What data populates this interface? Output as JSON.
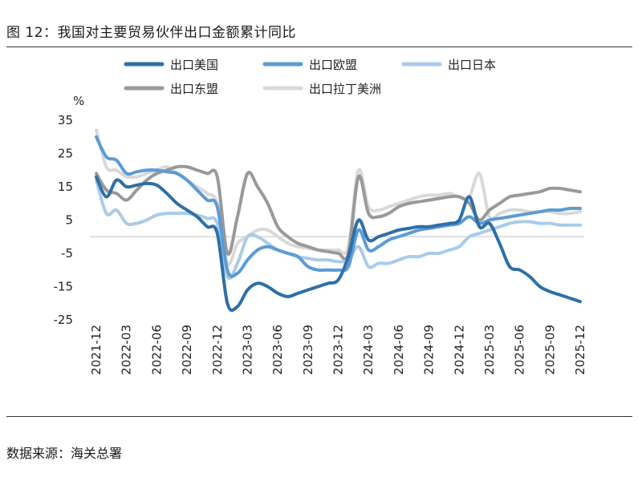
{
  "figure": {
    "title": "图 12：我国对主要贸易伙伴出口金额累计同比",
    "source": "数据来源：海关总署"
  },
  "chart_data": {
    "type": "line",
    "unit": "%",
    "title": "图 12：我国对主要贸易伙伴出口金额累计同比",
    "xlabel": "",
    "ylabel": "%",
    "ylim": [
      -25,
      35
    ],
    "yticks": [
      35,
      25,
      15,
      5,
      -5,
      -15,
      -25
    ],
    "xtick_labels": [
      "2021-12",
      "2022-03",
      "2022-06",
      "2022-09",
      "2022-12",
      "2023-03",
      "2023-06",
      "2023-09",
      "2023-12",
      "2024-03",
      "2024-06",
      "2024-09",
      "2024-12",
      "2025-03",
      "2025-06",
      "2025-09",
      "2025-12"
    ],
    "categories": [
      "2021-12",
      "2022-01",
      "2022-02",
      "2022-03",
      "2022-04",
      "2022-05",
      "2022-06",
      "2022-07",
      "2022-08",
      "2022-09",
      "2022-10",
      "2022-11",
      "2022-12",
      "2023-01",
      "2023-02",
      "2023-03",
      "2023-04",
      "2023-05",
      "2023-06",
      "2023-07",
      "2023-08",
      "2023-09",
      "2023-10",
      "2023-11",
      "2023-12",
      "2024-01",
      "2024-02",
      "2024-03",
      "2024-04",
      "2024-05",
      "2024-06",
      "2024-07",
      "2024-08",
      "2024-09",
      "2024-10",
      "2024-11",
      "2024-12",
      "2025-01",
      "2025-02",
      "2025-03",
      "2025-04",
      "2025-05",
      "2025-06",
      "2025-07",
      "2025-08",
      "2025-09",
      "2025-10",
      "2025-11",
      "2025-12"
    ],
    "series": [
      {
        "name": "出口美国",
        "color": "#2e6fa7",
        "width": 4,
        "values": [
          18,
          12,
          17,
          15,
          15.5,
          16,
          15.5,
          13,
          10,
          8,
          6,
          3,
          1,
          -20,
          -21,
          -16,
          -14,
          -15,
          -17,
          -18,
          -17,
          -16,
          -15,
          -14,
          -13,
          -6,
          5,
          -1,
          0,
          1,
          2,
          2.5,
          3,
          3,
          3.5,
          4,
          5,
          12,
          3,
          4,
          -2,
          -9,
          -10,
          -12,
          -15,
          -16.5,
          -17.5,
          -18.5,
          -19.5
        ]
      },
      {
        "name": "出口欧盟",
        "color": "#5b9bd5",
        "width": 4,
        "values": [
          30,
          24,
          23,
          19,
          19.5,
          20,
          20,
          19.5,
          19,
          17,
          14,
          11,
          9,
          -10,
          -11,
          -7,
          -4,
          -3,
          -4,
          -5,
          -6,
          -9,
          -10,
          -10,
          -10,
          -9,
          2,
          -4,
          -3,
          -1,
          0,
          1,
          2,
          2.5,
          3,
          3.5,
          4,
          6,
          4,
          5,
          5.5,
          6,
          6.5,
          7,
          7.5,
          8,
          8,
          8.5,
          8.5
        ]
      },
      {
        "name": "出口日本",
        "color": "#a9cbe8",
        "width": 4,
        "values": [
          17,
          7,
          8,
          4,
          4,
          5,
          6.5,
          7,
          7,
          7,
          6.5,
          5.5,
          4,
          -12,
          -8,
          0,
          0,
          -2,
          -4,
          -5,
          -6,
          -6.5,
          -7,
          -7,
          -7.5,
          -7,
          -3,
          -9,
          -8,
          -8,
          -7,
          -6,
          -6,
          -5,
          -5,
          -4,
          -3,
          0,
          1,
          2,
          3,
          4,
          4.5,
          4.5,
          4,
          4,
          3.5,
          3.5,
          3.5
        ]
      },
      {
        "name": "出口东盟",
        "color": "#999999",
        "width": 4,
        "values": [
          19,
          14,
          13,
          11,
          14,
          17,
          19,
          20,
          21,
          21,
          20,
          19,
          18,
          -5,
          6,
          19,
          15,
          10,
          3,
          0,
          -2,
          -3,
          -4,
          -4.5,
          -5,
          -5,
          18,
          7,
          6,
          7,
          9,
          10,
          10.5,
          11,
          11.5,
          12,
          12,
          10,
          5,
          8,
          10,
          12,
          12.5,
          13,
          13.5,
          14.5,
          14.5,
          14,
          13.5
        ]
      },
      {
        "name": "出口拉丁美洲",
        "color": "#d9d9d9",
        "width": 4,
        "values": [
          32,
          21,
          20,
          18,
          18,
          19,
          20,
          21,
          19,
          17,
          15,
          13,
          10,
          -8,
          -2,
          0,
          2,
          2,
          0,
          -2,
          -3,
          -3.5,
          -4,
          -4,
          -4,
          -3,
          20,
          9,
          8,
          9,
          10,
          11,
          12,
          12.5,
          12.5,
          13,
          12,
          12,
          19,
          6,
          7,
          8,
          8,
          7.5,
          7.5,
          7.5,
          7,
          7,
          7.5
        ]
      }
    ]
  }
}
